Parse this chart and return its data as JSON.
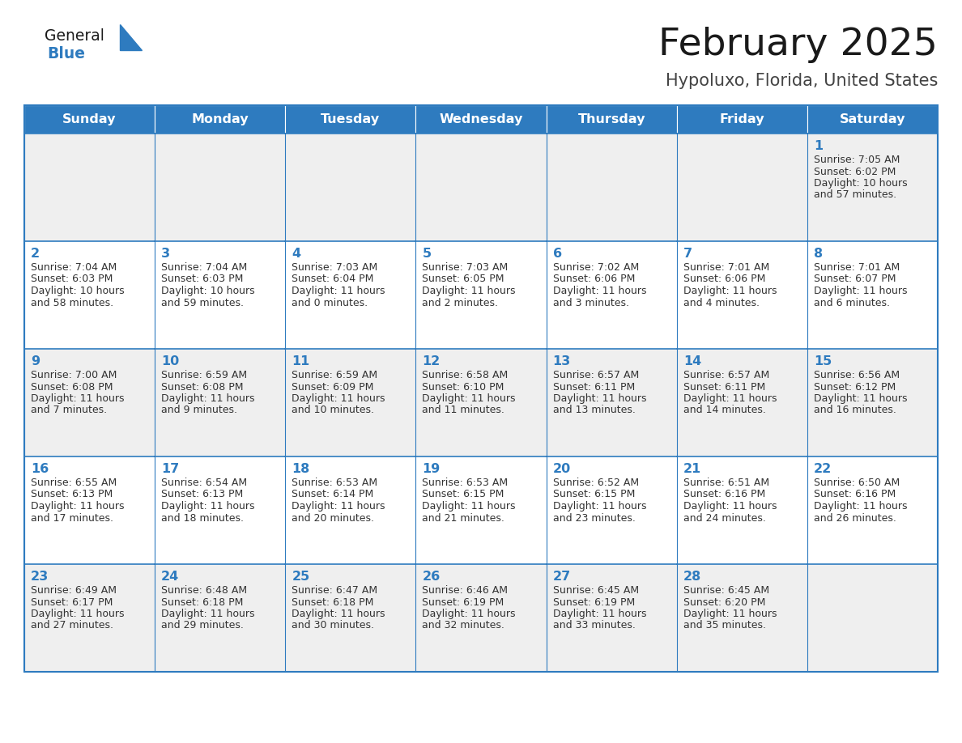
{
  "title": "February 2025",
  "subtitle": "Hypoluxo, Florida, United States",
  "days_of_week": [
    "Sunday",
    "Monday",
    "Tuesday",
    "Wednesday",
    "Thursday",
    "Friday",
    "Saturday"
  ],
  "header_bg": "#2E7BBF",
  "header_text_color": "#FFFFFF",
  "cell_bg_odd": "#EFEFEF",
  "cell_bg_even": "#FFFFFF",
  "border_color": "#2E7BBF",
  "day_num_color": "#2E7BBF",
  "info_text_color": "#333333",
  "title_color": "#1a1a1a",
  "subtitle_color": "#444444",
  "logo_general_color": "#1a1a1a",
  "logo_blue_color": "#2E7BBF",
  "calendar_data": [
    [
      null,
      null,
      null,
      null,
      null,
      null,
      {
        "day": 1,
        "sunrise": "7:05 AM",
        "sunset": "6:02 PM",
        "daylight": "10 hours and 57 minutes."
      }
    ],
    [
      {
        "day": 2,
        "sunrise": "7:04 AM",
        "sunset": "6:03 PM",
        "daylight": "10 hours and 58 minutes."
      },
      {
        "day": 3,
        "sunrise": "7:04 AM",
        "sunset": "6:03 PM",
        "daylight": "10 hours and 59 minutes."
      },
      {
        "day": 4,
        "sunrise": "7:03 AM",
        "sunset": "6:04 PM",
        "daylight": "11 hours and 0 minutes."
      },
      {
        "day": 5,
        "sunrise": "7:03 AM",
        "sunset": "6:05 PM",
        "daylight": "11 hours and 2 minutes."
      },
      {
        "day": 6,
        "sunrise": "7:02 AM",
        "sunset": "6:06 PM",
        "daylight": "11 hours and 3 minutes."
      },
      {
        "day": 7,
        "sunrise": "7:01 AM",
        "sunset": "6:06 PM",
        "daylight": "11 hours and 4 minutes."
      },
      {
        "day": 8,
        "sunrise": "7:01 AM",
        "sunset": "6:07 PM",
        "daylight": "11 hours and 6 minutes."
      }
    ],
    [
      {
        "day": 9,
        "sunrise": "7:00 AM",
        "sunset": "6:08 PM",
        "daylight": "11 hours and 7 minutes."
      },
      {
        "day": 10,
        "sunrise": "6:59 AM",
        "sunset": "6:08 PM",
        "daylight": "11 hours and 9 minutes."
      },
      {
        "day": 11,
        "sunrise": "6:59 AM",
        "sunset": "6:09 PM",
        "daylight": "11 hours and 10 minutes."
      },
      {
        "day": 12,
        "sunrise": "6:58 AM",
        "sunset": "6:10 PM",
        "daylight": "11 hours and 11 minutes."
      },
      {
        "day": 13,
        "sunrise": "6:57 AM",
        "sunset": "6:11 PM",
        "daylight": "11 hours and 13 minutes."
      },
      {
        "day": 14,
        "sunrise": "6:57 AM",
        "sunset": "6:11 PM",
        "daylight": "11 hours and 14 minutes."
      },
      {
        "day": 15,
        "sunrise": "6:56 AM",
        "sunset": "6:12 PM",
        "daylight": "11 hours and 16 minutes."
      }
    ],
    [
      {
        "day": 16,
        "sunrise": "6:55 AM",
        "sunset": "6:13 PM",
        "daylight": "11 hours and 17 minutes."
      },
      {
        "day": 17,
        "sunrise": "6:54 AM",
        "sunset": "6:13 PM",
        "daylight": "11 hours and 18 minutes."
      },
      {
        "day": 18,
        "sunrise": "6:53 AM",
        "sunset": "6:14 PM",
        "daylight": "11 hours and 20 minutes."
      },
      {
        "day": 19,
        "sunrise": "6:53 AM",
        "sunset": "6:15 PM",
        "daylight": "11 hours and 21 minutes."
      },
      {
        "day": 20,
        "sunrise": "6:52 AM",
        "sunset": "6:15 PM",
        "daylight": "11 hours and 23 minutes."
      },
      {
        "day": 21,
        "sunrise": "6:51 AM",
        "sunset": "6:16 PM",
        "daylight": "11 hours and 24 minutes."
      },
      {
        "day": 22,
        "sunrise": "6:50 AM",
        "sunset": "6:16 PM",
        "daylight": "11 hours and 26 minutes."
      }
    ],
    [
      {
        "day": 23,
        "sunrise": "6:49 AM",
        "sunset": "6:17 PM",
        "daylight": "11 hours and 27 minutes."
      },
      {
        "day": 24,
        "sunrise": "6:48 AM",
        "sunset": "6:18 PM",
        "daylight": "11 hours and 29 minutes."
      },
      {
        "day": 25,
        "sunrise": "6:47 AM",
        "sunset": "6:18 PM",
        "daylight": "11 hours and 30 minutes."
      },
      {
        "day": 26,
        "sunrise": "6:46 AM",
        "sunset": "6:19 PM",
        "daylight": "11 hours and 32 minutes."
      },
      {
        "day": 27,
        "sunrise": "6:45 AM",
        "sunset": "6:19 PM",
        "daylight": "11 hours and 33 minutes."
      },
      {
        "day": 28,
        "sunrise": "6:45 AM",
        "sunset": "6:20 PM",
        "daylight": "11 hours and 35 minutes."
      },
      null
    ]
  ]
}
